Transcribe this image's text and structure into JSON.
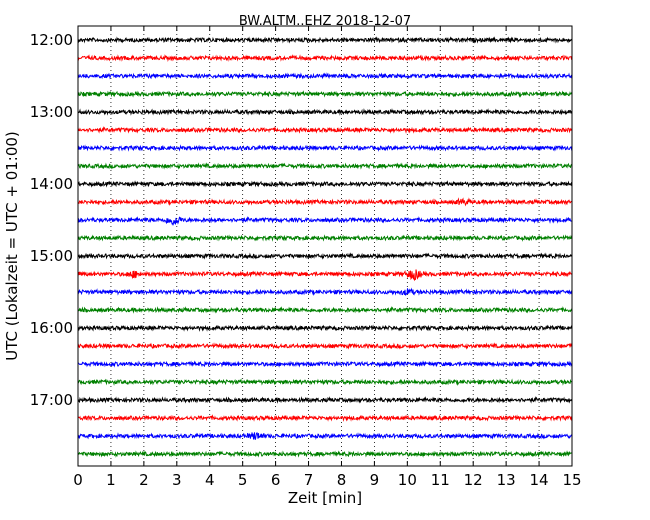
{
  "chart_data": {
    "type": "line",
    "title": "BW.ALTM..EHZ 2018-12-07",
    "xlabel": "Zeit  [min]",
    "ylabel": "UTC (Lokalzeit = UTC + 01:00)",
    "xlim": [
      0,
      15
    ],
    "x_ticks": [
      0,
      1,
      2,
      3,
      4,
      5,
      6,
      7,
      8,
      9,
      10,
      11,
      12,
      13,
      14,
      15
    ],
    "y_ticks": [
      "12:00",
      "13:00",
      "14:00",
      "15:00",
      "16:00",
      "17:00"
    ],
    "trace_start_times": [
      "12:00",
      "12:15",
      "12:30",
      "12:45",
      "13:00",
      "13:15",
      "13:30",
      "13:45",
      "14:00",
      "14:15",
      "14:30",
      "14:45",
      "15:00",
      "15:15",
      "15:30",
      "15:45",
      "16:00",
      "16:15",
      "16:30",
      "16:45",
      "17:00",
      "17:15",
      "17:30",
      "17:45"
    ],
    "trace_colors": [
      "#000000",
      "#ff0000",
      "#0000ff",
      "#008000"
    ],
    "grid": "vertical dotted",
    "events": [
      {
        "trace": 9,
        "x": 11.7,
        "amp": 2
      },
      {
        "trace": 10,
        "x": 2.9,
        "amp": 4.5
      },
      {
        "trace": 13,
        "x": 1.7,
        "amp": 2.5
      },
      {
        "trace": 13,
        "x": 10.2,
        "amp": 4.5
      },
      {
        "trace": 14,
        "x": 10.0,
        "amp": 2
      },
      {
        "trace": 22,
        "x": 5.4,
        "amp": 3
      }
    ]
  }
}
